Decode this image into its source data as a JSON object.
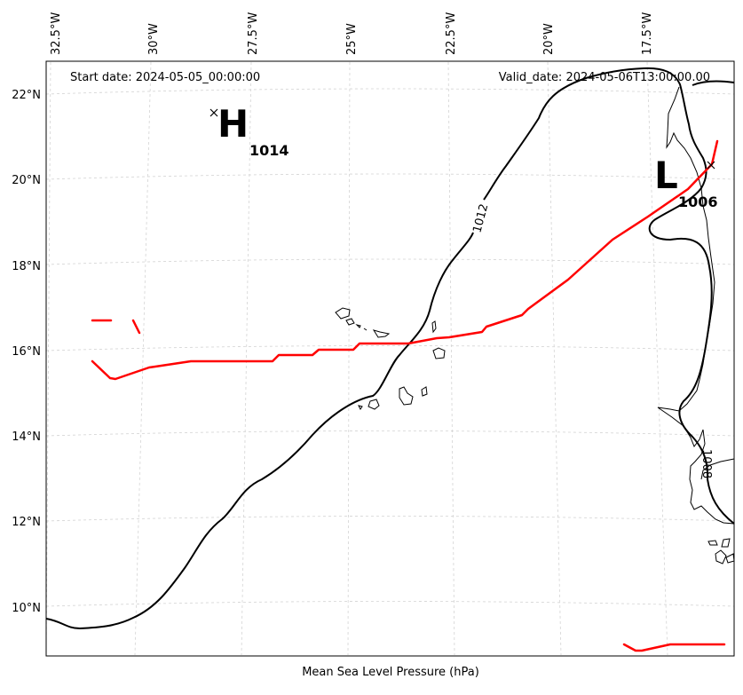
{
  "map": {
    "start_date": "Start date: 2024-05-05_00:00:00",
    "valid_date": "Valid_date: 2024-05-06T13:00:00.00",
    "caption": "Mean Sea Level Pressure (hPa)",
    "lon_ticks": [
      "32.5°W",
      "30°W",
      "27.5°W",
      "25°W",
      "22.5°W",
      "20°W",
      "17.5°W"
    ],
    "lat_ticks": [
      "22°N",
      "20°N",
      "18°N",
      "16°N",
      "14°N",
      "12°N",
      "10°N"
    ],
    "high": {
      "letter": "H",
      "value": "1014"
    },
    "low": {
      "letter": "L",
      "value": "1006"
    },
    "isobar_labels": [
      "1012",
      "1008"
    ],
    "colors": {
      "isobar": "#000000",
      "track": "#ff0000",
      "grid": "#cccccc"
    }
  }
}
